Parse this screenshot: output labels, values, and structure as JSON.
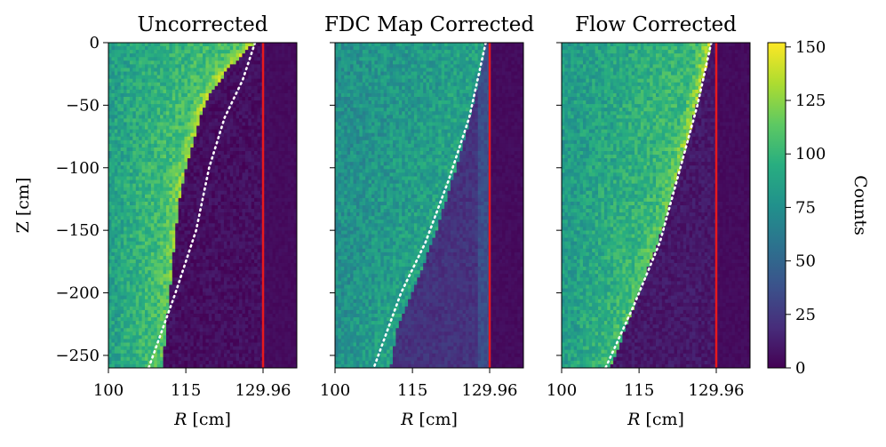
{
  "chart_data": {
    "type": "heatmap",
    "ylabel": "Z [cm]",
    "yticks": [
      0,
      -50,
      -100,
      -150,
      -200,
      -250
    ],
    "ytick_labels": [
      "0",
      "−50",
      "−100",
      "−150",
      "−200",
      "−250"
    ],
    "ylim": [
      -260,
      0
    ],
    "xlim": [
      100,
      136.5
    ],
    "xticks": [
      100,
      115,
      129.96
    ],
    "xtick_labels": [
      "100",
      "115",
      "129.96"
    ],
    "xlabel_var": "R",
    "xlabel_unit": " [cm]",
    "wall_R": 129.96,
    "wall_color": "#e8191c",
    "guide_color": "#ffffff",
    "colorbar": {
      "label": "Counts",
      "range": [
        0,
        152
      ],
      "ticks": [
        0,
        25,
        50,
        75,
        100,
        125,
        150
      ],
      "tick_labels": [
        "0",
        "25",
        "50",
        "75",
        "100",
        "125",
        "150"
      ],
      "colormap": "viridis"
    },
    "panels": [
      {
        "title": "Uncorrected",
        "edge_R_at_Z": [
          [
            0,
            128.4
          ],
          [
            -20,
            123.5
          ],
          [
            -40,
            119.8
          ],
          [
            -60,
            117.8
          ],
          [
            -80,
            116.5
          ],
          [
            -100,
            115.0
          ],
          [
            -130,
            113.6
          ],
          [
            -160,
            112.8
          ],
          [
            -200,
            111.9
          ],
          [
            -230,
            111.2
          ],
          [
            -260,
            110.5
          ]
        ],
        "guide_R_at_Z": [
          [
            0,
            128.4
          ],
          [
            -30,
            126.0
          ],
          [
            -60,
            122.5
          ],
          [
            -100,
            119.5
          ],
          [
            -150,
            117.0
          ],
          [
            -200,
            113.0
          ],
          [
            -260,
            107.8
          ]
        ],
        "level_near": 85,
        "level_far": 110,
        "bright_rim": 140,
        "interior_level": 6
      },
      {
        "title": "FDC Map Corrected",
        "edge_R_at_Z": [
          [
            0,
            129.2
          ],
          [
            -50,
            126.8
          ],
          [
            -100,
            123.5
          ],
          [
            -150,
            119.7
          ],
          [
            -200,
            115.0
          ],
          [
            -230,
            112.0
          ],
          [
            -260,
            110.8
          ]
        ],
        "guide_R_at_Z": [
          [
            0,
            129.2
          ],
          [
            -60,
            126.0
          ],
          [
            -110,
            122.0
          ],
          [
            -160,
            117.5
          ],
          [
            -200,
            112.8
          ],
          [
            -260,
            107.5
          ]
        ],
        "level_near": 75,
        "level_far": 88,
        "bright_rim": 85,
        "interior_level": 22
      },
      {
        "title": "Flow Corrected",
        "edge_R_at_Z": [
          [
            0,
            129.0
          ],
          [
            -40,
            126.8
          ],
          [
            -100,
            123.0
          ],
          [
            -150,
            119.5
          ],
          [
            -200,
            115.0
          ],
          [
            -260,
            109.5
          ]
        ],
        "guide_R_at_Z": [
          [
            0,
            129.0
          ],
          [
            -50,
            126.3
          ],
          [
            -100,
            123.0
          ],
          [
            -160,
            119.0
          ],
          [
            -210,
            114.0
          ],
          [
            -260,
            108.5
          ]
        ],
        "level_near": 82,
        "level_far": 104,
        "bright_rim": 140,
        "interior_level": 10
      }
    ]
  }
}
